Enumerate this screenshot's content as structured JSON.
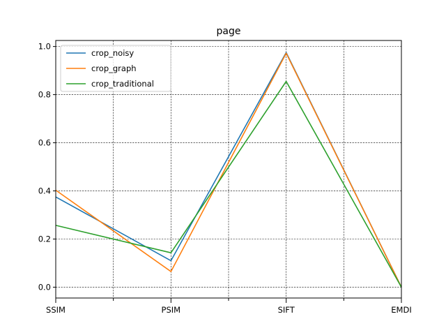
{
  "chart_data": {
    "type": "line",
    "title": "page",
    "xlabel": "",
    "ylabel": "",
    "categories": [
      "SSIM",
      "PSIM",
      "SIFT",
      "EMDI"
    ],
    "ylim": [
      -0.045,
      1.025
    ],
    "yticks": [
      "0.0",
      "0.2",
      "0.4",
      "0.6",
      "0.8",
      "1.0"
    ],
    "grid": true,
    "legend_position": "top-left",
    "series": [
      {
        "name": "crop_noisy",
        "color": "#1f77b4",
        "values": [
          0.375,
          0.11,
          0.975,
          0.0
        ]
      },
      {
        "name": "crop_graph",
        "color": "#ff7f0e",
        "values": [
          0.403,
          0.065,
          0.972,
          0.0
        ]
      },
      {
        "name": "crop_traditional",
        "color": "#2ca02c",
        "values": [
          0.257,
          0.143,
          0.855,
          0.0
        ]
      }
    ]
  }
}
